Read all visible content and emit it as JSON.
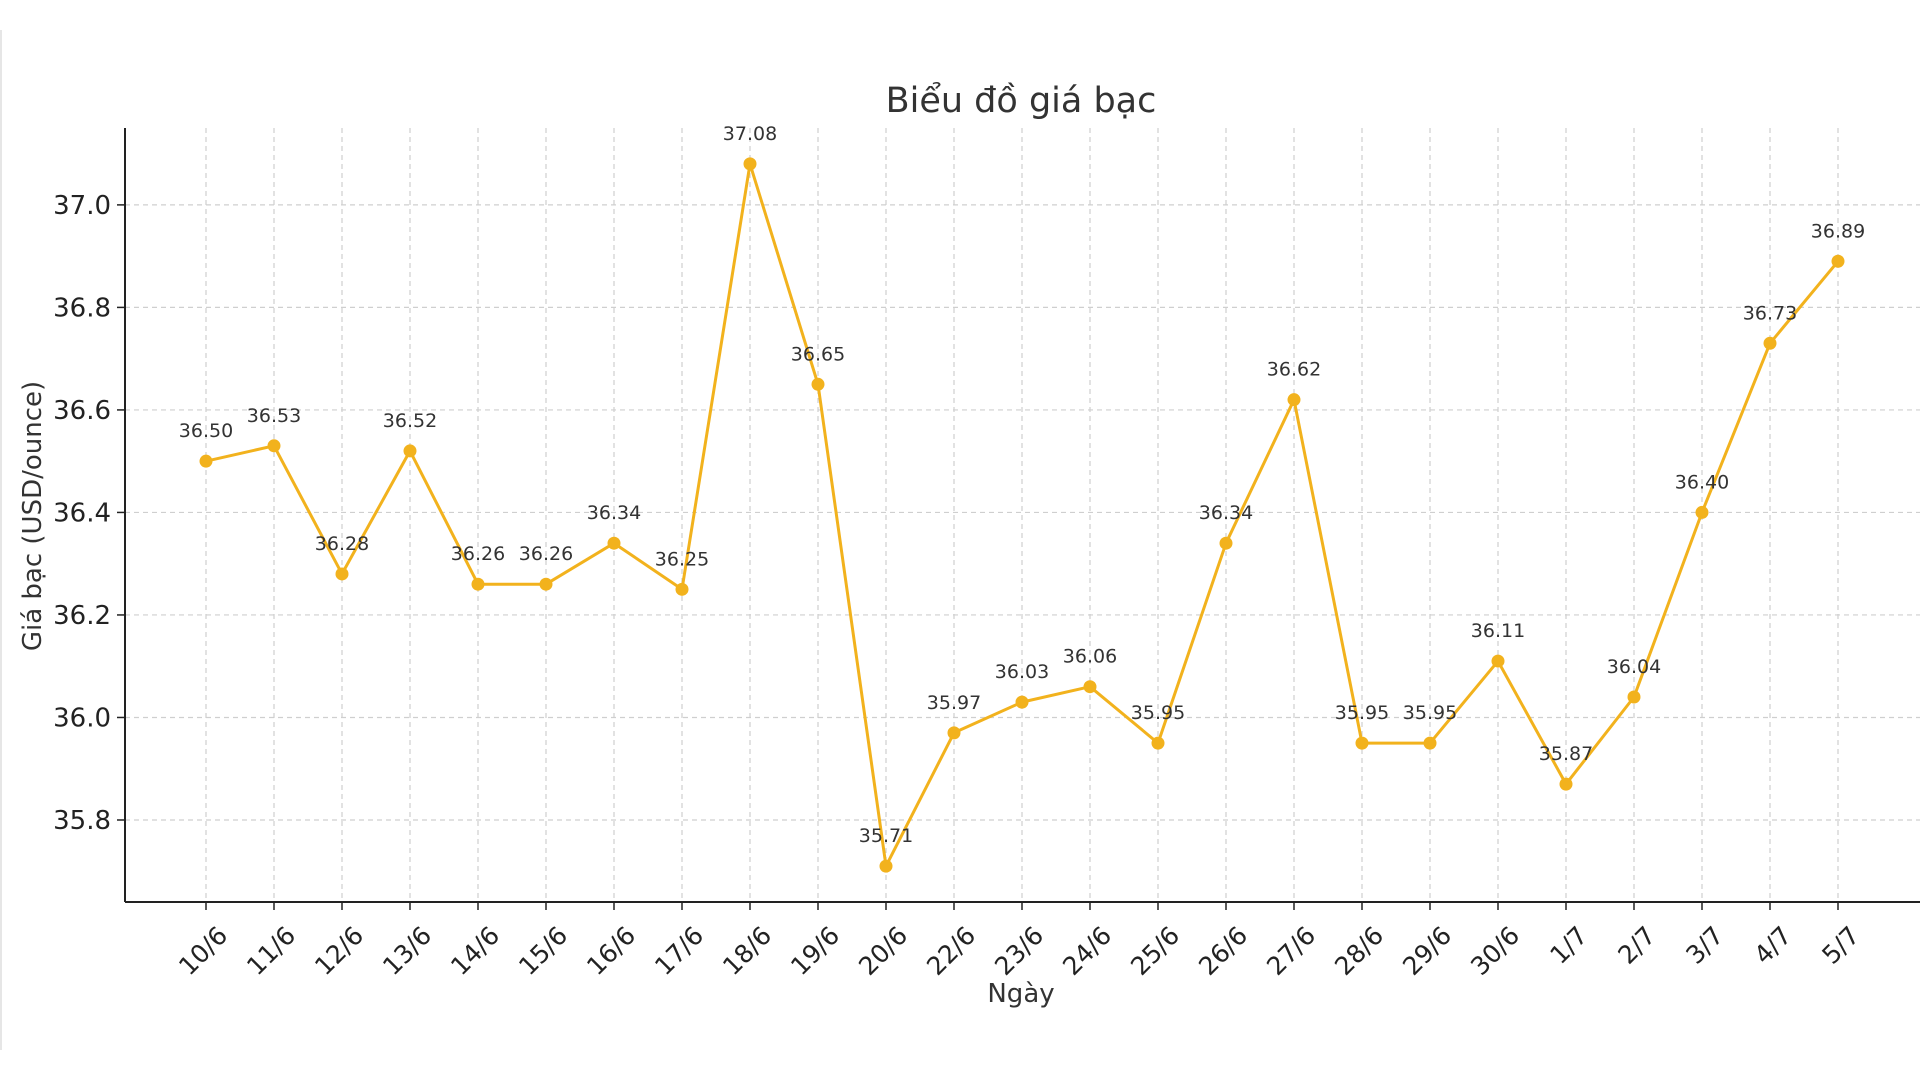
{
  "chart_data": {
    "type": "line",
    "title": "Biểu đồ giá bạc",
    "xlabel": "Ngày",
    "ylabel": "Giá bạc (USD/ounce)",
    "categories": [
      "10/6",
      "11/6",
      "12/6",
      "13/6",
      "14/6",
      "15/6",
      "16/6",
      "17/6",
      "18/6",
      "19/6",
      "20/6",
      "22/6",
      "23/6",
      "24/6",
      "25/6",
      "26/6",
      "27/6",
      "28/6",
      "29/6",
      "30/6",
      "1/7",
      "2/7",
      "3/7",
      "4/7",
      "5/7"
    ],
    "series": [
      {
        "values": [
          36.5,
          36.53,
          36.28,
          36.52,
          36.26,
          36.26,
          36.34,
          36.25,
          37.08,
          36.65,
          35.71,
          35.97,
          36.03,
          36.06,
          35.95,
          36.34,
          36.62,
          35.95,
          35.95,
          36.11,
          35.87,
          36.04,
          36.4,
          36.73,
          36.89
        ],
        "labels": [
          "36.50",
          "36.53",
          "36.28",
          "36.52",
          "36.26",
          "36.26",
          "36.34",
          "36.25",
          "37.08",
          "36.65",
          "35.71",
          "35.97",
          "36.03",
          "36.06",
          "35.95",
          "36.34",
          "36.62",
          "35.95",
          "35.95",
          "36.11",
          "35.87",
          "36.04",
          "36.40",
          "36.73",
          "36.89"
        ],
        "color": "#f2b21d"
      }
    ],
    "ylim": [
      35.64,
      37.15
    ],
    "yticks": [
      35.8,
      36.0,
      36.2,
      36.4,
      36.6,
      36.8,
      37.0
    ],
    "ytick_labels": [
      "35.8",
      "36.0",
      "36.2",
      "36.4",
      "36.6",
      "36.8",
      "37.0"
    ],
    "grid": true,
    "legend": "none"
  }
}
